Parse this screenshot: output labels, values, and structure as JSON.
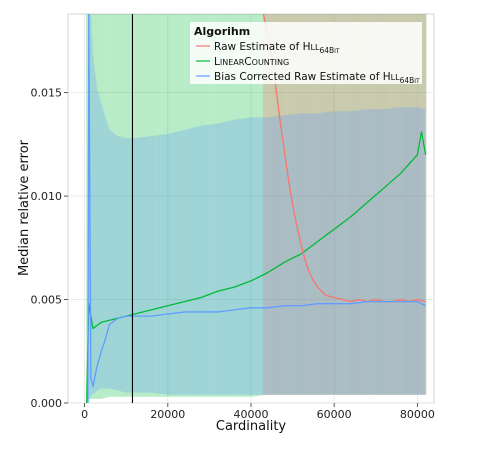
{
  "chart_data": {
    "type": "line",
    "title": "",
    "xlabel": "Cardinality",
    "ylabel": "Median relative error",
    "xlim": [
      -4000,
      84000
    ],
    "ylim": [
      0,
      0.0188
    ],
    "x_ticks": [
      0,
      20000,
      40000,
      60000,
      80000
    ],
    "x_tick_labels": [
      "0",
      "20000",
      "40000",
      "60000",
      "80000"
    ],
    "y_ticks": [
      0.0,
      0.005,
      0.01,
      0.015
    ],
    "y_tick_labels": [
      "0.000",
      "0.005",
      "0.010",
      "0.015"
    ],
    "grid": true,
    "vertical_line_x": 11500,
    "legend": {
      "title": "Algorihm",
      "position": "top-right",
      "entries": [
        {
          "main": "Raw Estimate of ",
          "sc_big": "H",
          "sc_small": "LL",
          "sub_big": "64B",
          "sub_small": "IT"
        },
        {
          "main": "",
          "sc_big": "L",
          "sc_small": "INEAR",
          "sc_big2": "C",
          "sc_small2": "OUNTING"
        },
        {
          "main": "Bias Corrected Raw Estimate of ",
          "sc_big": "H",
          "sc_small": "LL",
          "sub_big": "64B",
          "sub_small": "IT"
        }
      ]
    },
    "series": [
      {
        "name": "Raw Estimate of HLL64Bit",
        "color": "#f8766d",
        "x": [
          43000,
          44000,
          45000,
          46000,
          47000,
          48000,
          49000,
          50000,
          51000,
          52000,
          53000,
          54000,
          55000,
          56000,
          57000,
          58000,
          60000,
          62000,
          64000,
          66000,
          68000,
          70000,
          72000,
          74000,
          76000,
          78000,
          80000,
          82000
        ],
        "y": [
          0.0188,
          0.0178,
          0.0168,
          0.0152,
          0.0136,
          0.0122,
          0.0108,
          0.0096,
          0.0086,
          0.0077,
          0.0069,
          0.0063,
          0.0059,
          0.0056,
          0.0054,
          0.0052,
          0.0051,
          0.005,
          0.0049,
          0.005,
          0.0049,
          0.005,
          0.0049,
          0.0049,
          0.005,
          0.0049,
          0.005,
          0.0049
        ],
        "band_upper": [
          0.0188,
          0.0188,
          0.0188,
          0.0188,
          0.0188,
          0.0188,
          0.0188,
          0.0188,
          0.0188,
          0.0188,
          0.0188,
          0.0188,
          0.0188,
          0.0188,
          0.0188,
          0.0188,
          0.0188,
          0.0188,
          0.0188,
          0.0188,
          0.0188,
          0.0188,
          0.0188,
          0.0188,
          0.0188,
          0.0188,
          0.0188,
          0.0188
        ],
        "band_lower": [
          0.0004,
          0.0004,
          0.0004,
          0.0004,
          0.0004,
          0.0004,
          0.0004,
          0.0004,
          0.0004,
          0.0004,
          0.0004,
          0.0004,
          0.0004,
          0.0004,
          0.0004,
          0.0004,
          0.0004,
          0.0004,
          0.0004,
          0.0004,
          0.0004,
          0.0004,
          0.0004,
          0.0004,
          0.0004,
          0.0004,
          0.0004,
          0.0004
        ]
      },
      {
        "name": "LinearCounting",
        "color": "#00ba38",
        "x": [
          500,
          1000,
          2000,
          4000,
          6000,
          8000,
          10000,
          12000,
          16000,
          20000,
          24000,
          28000,
          32000,
          36000,
          40000,
          44000,
          48000,
          52000,
          56000,
          60000,
          64000,
          68000,
          72000,
          76000,
          80000,
          81000,
          82000
        ],
        "y": [
          0.0,
          0.0048,
          0.0036,
          0.0039,
          0.004,
          0.0041,
          0.0042,
          0.0043,
          0.0045,
          0.0047,
          0.0049,
          0.0051,
          0.0054,
          0.0056,
          0.0059,
          0.0063,
          0.0068,
          0.0072,
          0.0078,
          0.0084,
          0.009,
          0.0097,
          0.0104,
          0.0111,
          0.012,
          0.0131,
          0.012
        ],
        "band_upper": [
          0.0188,
          0.0188,
          0.0188,
          0.0188,
          0.0188,
          0.0188,
          0.0188,
          0.0188,
          0.0188,
          0.0188,
          0.0188,
          0.0188,
          0.0188,
          0.0188,
          0.0188,
          0.0188,
          0.0188,
          0.0188,
          0.0188,
          0.0188,
          0.0188,
          0.0188,
          0.0188,
          0.0188,
          0.0188,
          0.0188,
          0.0188
        ],
        "band_lower": [
          0.0,
          0.0002,
          0.0002,
          0.0002,
          0.0003,
          0.0003,
          0.0003,
          0.0003,
          0.0003,
          0.0003,
          0.0003,
          0.0003,
          0.0003,
          0.0003,
          0.0003,
          0.0004,
          0.0004,
          0.0004,
          0.0004,
          0.0004,
          0.0004,
          0.0004,
          0.0004,
          0.0004,
          0.0004,
          0.0004,
          0.0004
        ]
      },
      {
        "name": "Bias Corrected Raw Estimate of HLL64Bit",
        "color": "#619cff",
        "x": [
          800,
          1000,
          1500,
          2000,
          3000,
          4000,
          5000,
          6000,
          8000,
          10000,
          12000,
          16000,
          20000,
          24000,
          28000,
          32000,
          36000,
          40000,
          44000,
          48000,
          52000,
          56000,
          60000,
          64000,
          68000,
          72000,
          76000,
          80000,
          82000
        ],
        "y": [
          0.0,
          0.0188,
          0.0012,
          0.0008,
          0.0018,
          0.0025,
          0.0031,
          0.0038,
          0.0041,
          0.0042,
          0.0042,
          0.0042,
          0.0043,
          0.0044,
          0.0044,
          0.0044,
          0.0045,
          0.0046,
          0.0046,
          0.0047,
          0.0047,
          0.0048,
          0.0048,
          0.0048,
          0.0049,
          0.0049,
          0.0049,
          0.0049,
          0.0047
        ],
        "band_upper": [
          0.0,
          0.0188,
          0.0188,
          0.0168,
          0.0152,
          0.0145,
          0.0138,
          0.0132,
          0.0129,
          0.0128,
          0.0128,
          0.0129,
          0.013,
          0.0132,
          0.0134,
          0.0135,
          0.0137,
          0.0138,
          0.0138,
          0.0139,
          0.014,
          0.014,
          0.0141,
          0.0141,
          0.0142,
          0.0142,
          0.0143,
          0.0143,
          0.0142
        ],
        "band_lower": [
          0.0,
          0.0,
          0.0004,
          0.0004,
          0.0006,
          0.0007,
          0.0007,
          0.0007,
          0.0006,
          0.0005,
          0.0005,
          0.0005,
          0.0004,
          0.0004,
          0.0004,
          0.0004,
          0.0004,
          0.0004,
          0.0004,
          0.0004,
          0.0004,
          0.0004,
          0.0004,
          0.0004,
          0.0004,
          0.0004,
          0.0004,
          0.0004,
          0.0004
        ]
      }
    ]
  }
}
